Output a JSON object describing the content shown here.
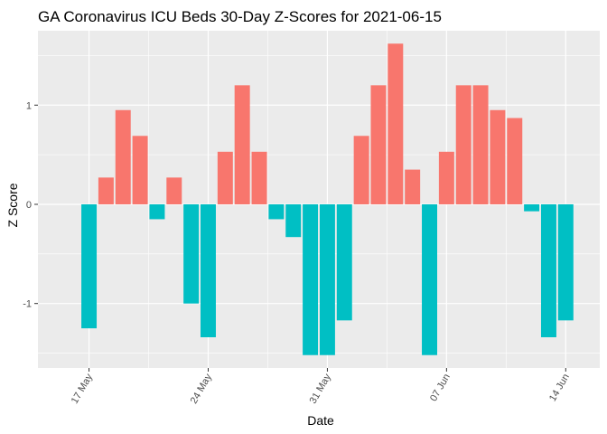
{
  "chart_data": {
    "type": "bar",
    "title": "GA Coronavirus ICU Beds 30-Day Z-Scores for 2021-06-15",
    "xlabel": "Date",
    "ylabel": "Z Score",
    "ylim": [
      -1.65,
      1.75
    ],
    "yticks": [
      -1,
      0,
      1
    ],
    "ytick_labels": [
      "-1",
      "0",
      "1"
    ],
    "xticks": [
      "2021-05-17",
      "2021-05-24",
      "2021-05-31",
      "2021-06-07",
      "2021-06-14"
    ],
    "xtick_labels": [
      "17 May",
      "24 May",
      "31 May",
      "07 Jun",
      "14 Jun"
    ],
    "xlim": [
      "2021-05-14",
      "2021-06-16"
    ],
    "grid": true,
    "legend": "none",
    "colors": {
      "positive": "#F8766D",
      "negative": "#00BFC4",
      "panel": "#EBEBEB",
      "grid": "#FFFFFF"
    },
    "dates": [
      "2021-05-17",
      "2021-05-18",
      "2021-05-19",
      "2021-05-20",
      "2021-05-21",
      "2021-05-22",
      "2021-05-23",
      "2021-05-24",
      "2021-05-25",
      "2021-05-26",
      "2021-05-27",
      "2021-05-28",
      "2021-05-29",
      "2021-05-30",
      "2021-05-31",
      "2021-06-01",
      "2021-06-02",
      "2021-06-03",
      "2021-06-04",
      "2021-06-05",
      "2021-06-06",
      "2021-06-07",
      "2021-06-08",
      "2021-06-09",
      "2021-06-10",
      "2021-06-11",
      "2021-06-12",
      "2021-06-13",
      "2021-06-14"
    ],
    "values": [
      -1.25,
      0.27,
      0.95,
      0.69,
      -0.15,
      0.27,
      -1.0,
      -1.34,
      0.53,
      1.2,
      0.53,
      -0.15,
      -0.33,
      -1.52,
      -1.52,
      -1.17,
      0.69,
      1.2,
      1.62,
      0.35,
      -1.52,
      0.53,
      1.2,
      1.2,
      0.95,
      0.87,
      -0.07,
      -1.34,
      -1.17
    ]
  }
}
